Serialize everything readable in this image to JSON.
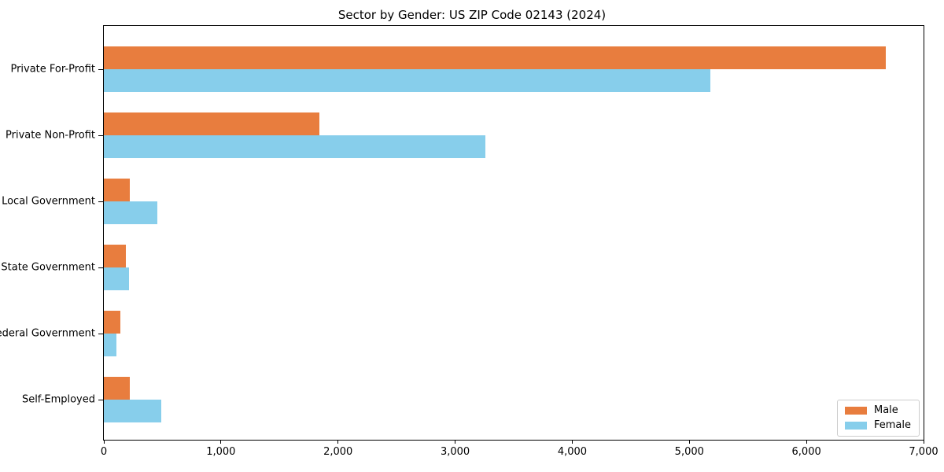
{
  "title": "Sector by Gender: US ZIP Code 02143 (2024)",
  "colors": {
    "male": "#e87d3e",
    "female": "#87ceeb",
    "axis": "#000000",
    "legend_border": "#cccccc",
    "background": "#ffffff"
  },
  "chart_data": {
    "type": "bar",
    "orientation": "horizontal",
    "title": "Sector by Gender: US ZIP Code 02143 (2024)",
    "categories": [
      "Private For-Profit",
      "Private Non-Profit",
      "Local Government",
      "State Government",
      "Federal Government",
      "Self-Employed"
    ],
    "series": [
      {
        "name": "Male",
        "color": "#e87d3e",
        "values": [
          6675,
          1840,
          220,
          185,
          140,
          220
        ]
      },
      {
        "name": "Female",
        "color": "#87ceeb",
        "values": [
          5180,
          3260,
          455,
          215,
          105,
          490
        ]
      }
    ],
    "xlabel": "",
    "ylabel": "",
    "xlim": [
      0,
      7000
    ],
    "xticks": [
      0,
      1000,
      2000,
      3000,
      4000,
      5000,
      6000,
      7000
    ],
    "xtick_labels": [
      "0",
      "1,000",
      "2,000",
      "3,000",
      "4,000",
      "5,000",
      "6,000",
      "7,000"
    ],
    "grid": false,
    "legend": {
      "position": "lower right",
      "entries": [
        "Male",
        "Female"
      ]
    }
  }
}
